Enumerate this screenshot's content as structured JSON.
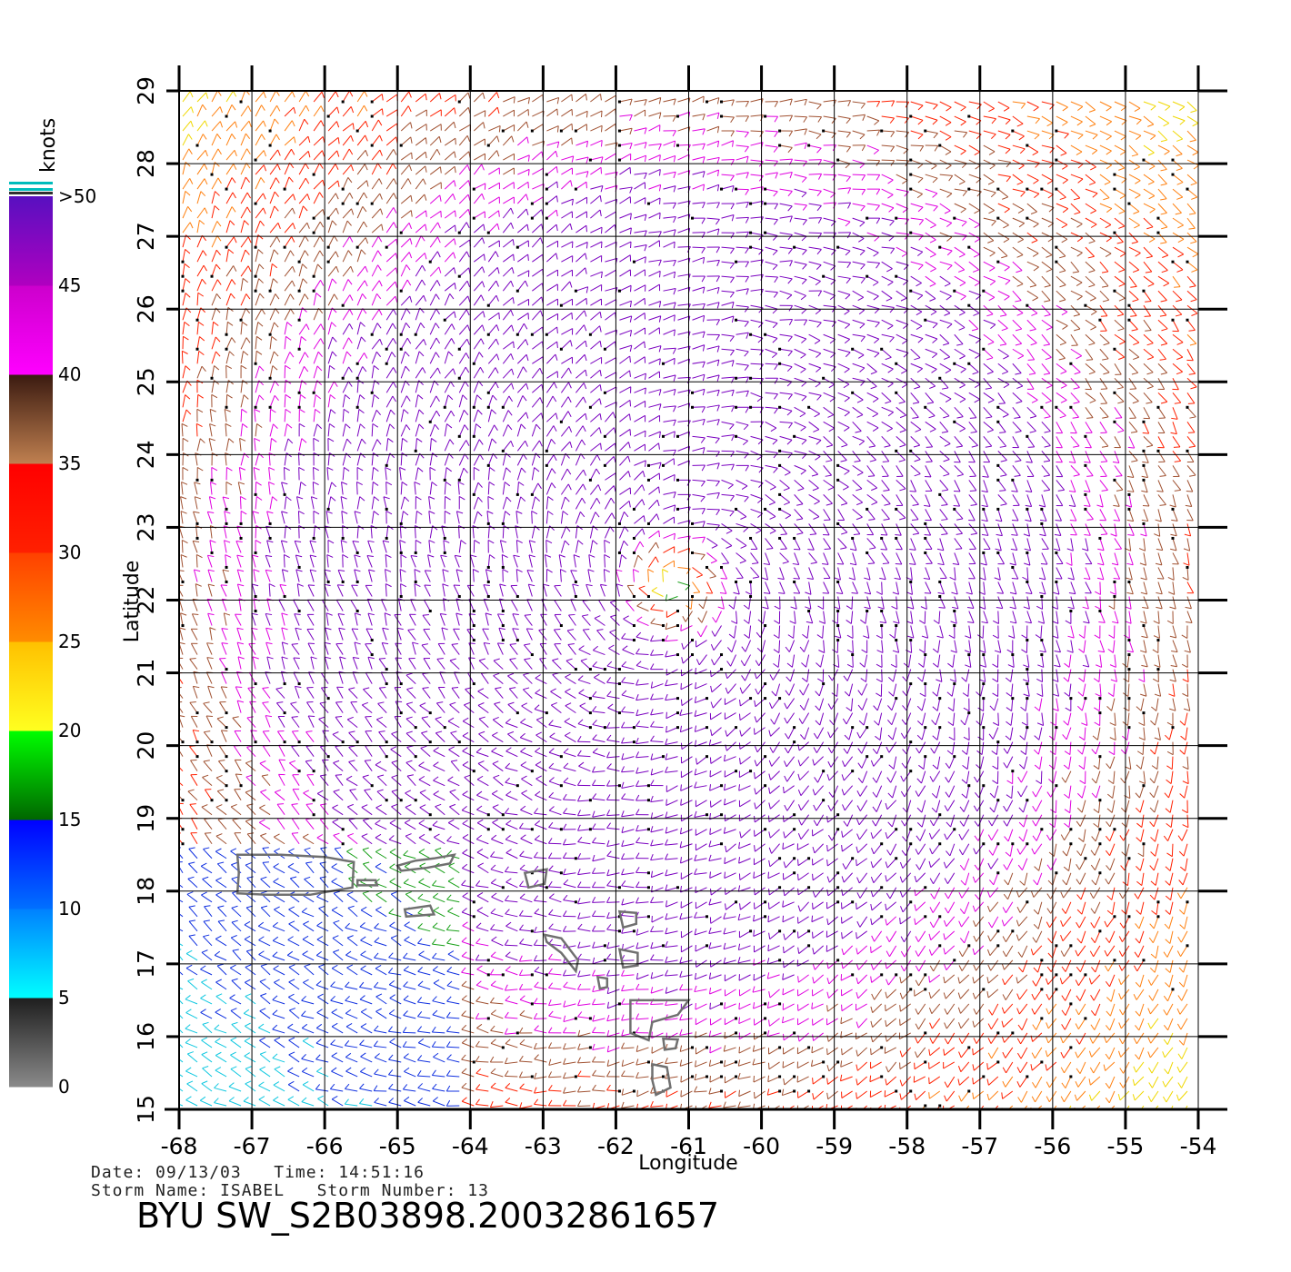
{
  "chart_data": {
    "type": "wind-barb-field",
    "xlabel": "Longitude",
    "ylabel": "Latitude",
    "xlim": [
      -68,
      -54
    ],
    "ylim": [
      15,
      29
    ],
    "x_ticks": [
      "-68",
      "-67",
      "-66",
      "-65",
      "-64",
      "-63",
      "-62",
      "-61",
      "-60",
      "-59",
      "-58",
      "-57",
      "-56",
      "-55",
      "-54"
    ],
    "y_ticks": [
      "15",
      "16",
      "17",
      "18",
      "19",
      "20",
      "21",
      "22",
      "23",
      "24",
      "25",
      "26",
      "27",
      "28",
      "29"
    ],
    "grid": true,
    "storm_center": {
      "lon": -61.2,
      "lat": 22.2
    },
    "colorbar": {
      "unit_label": "knots",
      "labels": [
        ">50",
        "45",
        "40",
        "35",
        "30",
        "25",
        "20",
        "15",
        "10",
        "5",
        "0"
      ],
      "bands": [
        {
          "range": [
            0,
            5
          ],
          "colors": [
            "#8a8a8a",
            "#1e1e1e"
          ]
        },
        {
          "range": [
            5,
            10
          ],
          "colors": [
            "#00ffff",
            "#0080ff"
          ]
        },
        {
          "range": [
            10,
            15
          ],
          "colors": [
            "#0070ff",
            "#0000ff"
          ]
        },
        {
          "range": [
            15,
            20
          ],
          "colors": [
            "#006600",
            "#00ff00"
          ]
        },
        {
          "range": [
            20,
            25
          ],
          "colors": [
            "#ffff20",
            "#ffc000"
          ]
        },
        {
          "range": [
            25,
            30
          ],
          "colors": [
            "#ff8c00",
            "#ff4000"
          ]
        },
        {
          "range": [
            30,
            35
          ],
          "colors": [
            "#ff2000",
            "#ff0000"
          ]
        },
        {
          "range": [
            35,
            40
          ],
          "colors": [
            "#c08050",
            "#3a1a10"
          ]
        },
        {
          "range": [
            40,
            45
          ],
          "colors": [
            "#ff00ff",
            "#cc00cc"
          ]
        },
        {
          "range": [
            45,
            50
          ],
          "colors": [
            "#b000c0",
            "#5810c0"
          ]
        }
      ]
    },
    "islands": [
      {
        "name": "puerto-rico",
        "lonlat": [
          [
            -67.2,
            18.5
          ],
          [
            -66.6,
            18.5
          ],
          [
            -66.0,
            18.47
          ],
          [
            -65.6,
            18.4
          ],
          [
            -65.62,
            18.05
          ],
          [
            -66.2,
            17.95
          ],
          [
            -66.8,
            17.95
          ],
          [
            -67.2,
            17.97
          ],
          [
            -67.18,
            18.25
          ]
        ]
      },
      {
        "name": "vieques",
        "lonlat": [
          [
            -65.55,
            18.15
          ],
          [
            -65.3,
            18.15
          ],
          [
            -65.28,
            18.08
          ],
          [
            -65.55,
            18.08
          ]
        ]
      },
      {
        "name": "virgin-islands",
        "lonlat": [
          [
            -65.0,
            18.35
          ],
          [
            -64.75,
            18.42
          ],
          [
            -64.5,
            18.45
          ],
          [
            -64.22,
            18.5
          ],
          [
            -64.28,
            18.38
          ],
          [
            -64.6,
            18.32
          ],
          [
            -64.95,
            18.28
          ]
        ]
      },
      {
        "name": "st-croix",
        "lonlat": [
          [
            -64.9,
            17.75
          ],
          [
            -64.55,
            17.8
          ],
          [
            -64.5,
            17.68
          ],
          [
            -64.88,
            17.65
          ]
        ]
      },
      {
        "name": "anguilla-stmartin",
        "lonlat": [
          [
            -63.25,
            18.25
          ],
          [
            -62.95,
            18.3
          ],
          [
            -62.98,
            18.1
          ],
          [
            -63.2,
            18.05
          ]
        ]
      },
      {
        "name": "st-kitts-nevis",
        "lonlat": [
          [
            -62.98,
            17.4
          ],
          [
            -62.75,
            17.35
          ],
          [
            -62.52,
            17.05
          ],
          [
            -62.55,
            16.9
          ],
          [
            -62.75,
            17.15
          ],
          [
            -62.95,
            17.3
          ]
        ]
      },
      {
        "name": "antigua",
        "lonlat": [
          [
            -61.95,
            17.2
          ],
          [
            -61.7,
            17.15
          ],
          [
            -61.7,
            16.98
          ],
          [
            -61.9,
            16.95
          ]
        ]
      },
      {
        "name": "barbuda",
        "lonlat": [
          [
            -61.95,
            17.72
          ],
          [
            -61.72,
            17.7
          ],
          [
            -61.72,
            17.55
          ],
          [
            -61.9,
            17.5
          ]
        ]
      },
      {
        "name": "montserrat",
        "lonlat": [
          [
            -62.25,
            16.82
          ],
          [
            -62.12,
            16.8
          ],
          [
            -62.12,
            16.68
          ],
          [
            -62.22,
            16.66
          ]
        ]
      },
      {
        "name": "guadeloupe",
        "lonlat": [
          [
            -61.8,
            16.5
          ],
          [
            -61.5,
            16.5
          ],
          [
            -61.0,
            16.5
          ],
          [
            -61.15,
            16.3
          ],
          [
            -61.5,
            16.2
          ],
          [
            -61.55,
            15.95
          ],
          [
            -61.8,
            16.05
          ]
        ]
      },
      {
        "name": "marie-galante",
        "lonlat": [
          [
            -61.35,
            15.97
          ],
          [
            -61.15,
            15.96
          ],
          [
            -61.18,
            15.84
          ],
          [
            -61.33,
            15.82
          ]
        ]
      },
      {
        "name": "dominica",
        "lonlat": [
          [
            -61.5,
            15.62
          ],
          [
            -61.3,
            15.58
          ],
          [
            -61.25,
            15.3
          ],
          [
            -61.45,
            15.2
          ],
          [
            -61.5,
            15.4
          ]
        ]
      }
    ]
  },
  "metadata": {
    "date_line": "Date: 09/13/03   Time: 14:51:16",
    "storm_line": "Storm Name: ISABEL   Storm Number: 13",
    "title": "BYU SW_S2B03898.20032861657"
  }
}
